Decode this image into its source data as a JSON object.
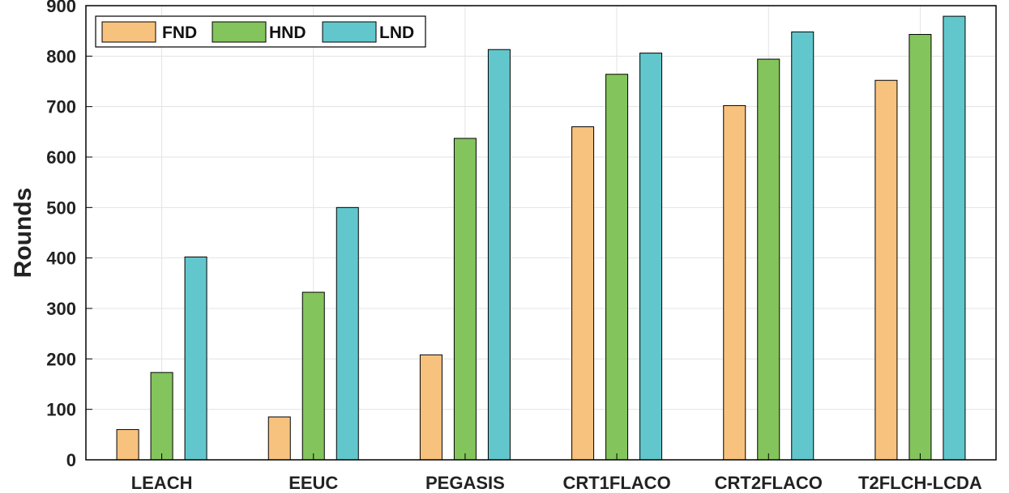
{
  "chart_data": {
    "type": "bar",
    "title": "",
    "xlabel": "",
    "ylabel": "Rounds",
    "ylim": [
      0,
      900
    ],
    "yticks": [
      0,
      100,
      200,
      300,
      400,
      500,
      600,
      700,
      800,
      900
    ],
    "grid": true,
    "legend_position": "top-left",
    "categories": [
      "LEACH",
      "EEUC",
      "PEGASIS",
      "CRT1FLACO",
      "CRT2FLACO",
      "T2FLCH-LCDA"
    ],
    "series": [
      {
        "name": "FND",
        "color": "#f7c27e",
        "values": [
          60,
          85,
          208,
          660,
          702,
          752
        ]
      },
      {
        "name": "HND",
        "color": "#84c45c",
        "values": [
          173,
          332,
          637,
          764,
          794,
          843
        ]
      },
      {
        "name": "LND",
        "color": "#62c7cc",
        "values": [
          402,
          500,
          813,
          806,
          848,
          879
        ]
      }
    ]
  }
}
